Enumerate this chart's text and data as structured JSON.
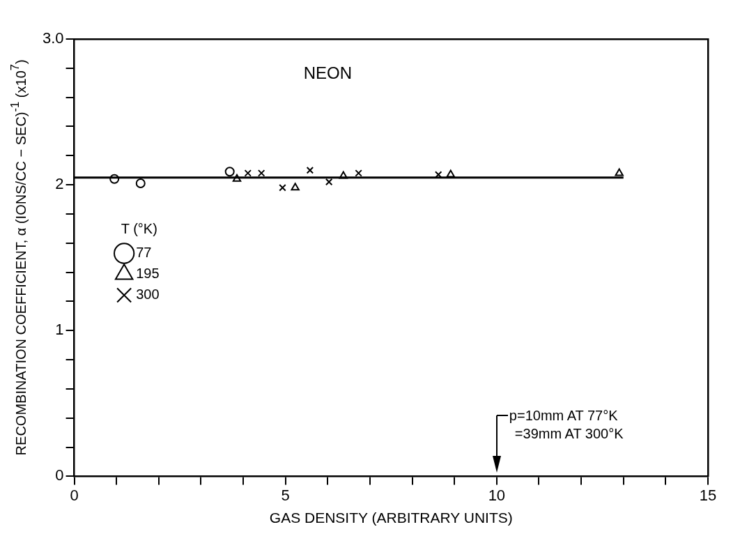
{
  "chart_data": {
    "type": "scatter",
    "title": "NEON",
    "xlabel": "GAS DENSITY (ARBITRARY UNITS)",
    "ylabel": "RECOMBINATION COEFFICIENT, α (IONS/CC − SEC)$^{-1}$ (x10$^{7}$)",
    "legend_title": "T (°K)",
    "legend": "left",
    "grid": false,
    "xlim": [
      0,
      15
    ],
    "ylim": [
      0,
      3.0
    ],
    "xticks": [
      0,
      {
        "value": 1,
        "label": null
      },
      {
        "value": 2,
        "label": null
      },
      {
        "value": 3,
        "label": null
      },
      {
        "value": 4,
        "label": null
      },
      5,
      {
        "value": 6,
        "label": null
      },
      {
        "value": 7,
        "label": null
      },
      {
        "value": 8,
        "label": null
      },
      {
        "value": 9,
        "label": null
      },
      10,
      {
        "value": 11,
        "label": null
      },
      {
        "value": 12,
        "label": null
      },
      {
        "value": 13,
        "label": null
      },
      {
        "value": 14,
        "label": null
      },
      15
    ],
    "yticks": [
      0,
      {
        "value": 0.2,
        "label": null
      },
      {
        "value": 0.4,
        "label": null
      },
      {
        "value": 0.6,
        "label": null
      },
      {
        "value": 0.8,
        "label": null
      },
      1,
      {
        "value": 1.2,
        "label": null
      },
      {
        "value": 1.4,
        "label": null
      },
      {
        "value": 1.6,
        "label": null
      },
      {
        "value": 1.8,
        "label": null
      },
      2,
      {
        "value": 2.2,
        "label": null
      },
      {
        "value": 2.4,
        "label": null
      },
      {
        "value": 2.6,
        "label": null
      },
      {
        "value": 2.8,
        "label": null
      },
      {
        "value": 3.0,
        "label": "3.0"
      }
    ],
    "series": [
      {
        "name": "77",
        "color": "#000000",
        "marker": "circle",
        "x": [
          0.95,
          1.57,
          3.68
        ],
        "values": [
          2.04,
          2.01,
          2.09
        ]
      },
      {
        "name": "195",
        "color": "#000000",
        "marker": "triangle",
        "x": [
          3.85,
          5.23,
          6.37,
          8.91,
          12.9
        ],
        "values": [
          2.04,
          1.98,
          2.06,
          2.07,
          2.08
        ]
      },
      {
        "name": "300",
        "color": "#000000",
        "marker": "cross",
        "x": [
          4.11,
          4.43,
          4.93,
          5.58,
          6.03,
          6.73,
          8.62
        ],
        "values": [
          2.08,
          2.08,
          1.98,
          2.1,
          2.02,
          2.08,
          2.07
        ]
      },
      {
        "type": "line",
        "color": "#000000",
        "marker": "none",
        "line_style": "solid",
        "x": [
          0,
          13
        ],
        "values": [
          2.05,
          2.05
        ]
      }
    ],
    "annotations": [
      "p=10mm AT 77°K\n=39mm AT 300°K"
    ]
  }
}
